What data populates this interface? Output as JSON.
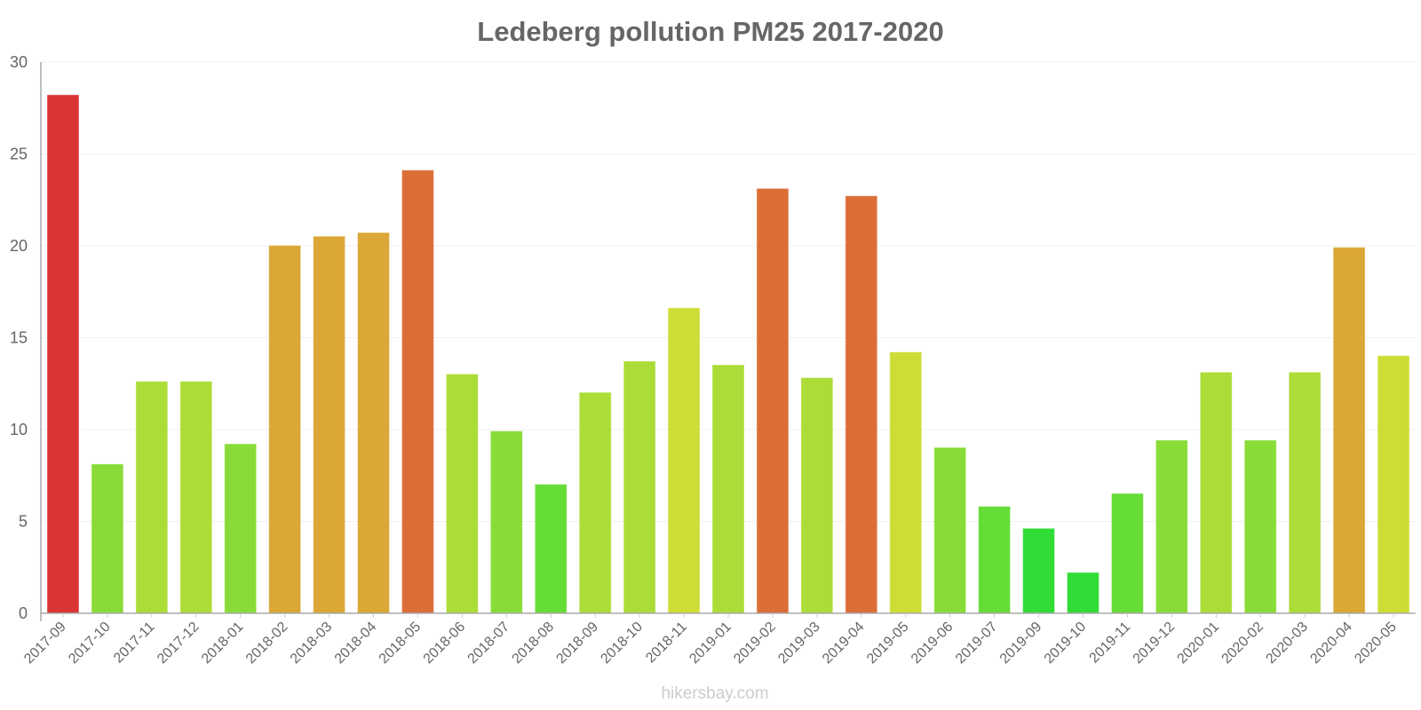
{
  "chart_data": {
    "type": "bar",
    "title": "Ledeberg pollution PM25 2017-2020",
    "xlabel": "",
    "ylabel": "",
    "ylim": [
      0,
      30
    ],
    "yticks": [
      0,
      5,
      10,
      15,
      20,
      25,
      30
    ],
    "grid": true,
    "categories": [
      "2017-09",
      "2017-10",
      "2017-11",
      "2017-12",
      "2018-01",
      "2018-02",
      "2018-03",
      "2018-04",
      "2018-05",
      "2018-06",
      "2018-07",
      "2018-08",
      "2018-09",
      "2018-10",
      "2018-11",
      "2019-01",
      "2019-02",
      "2019-03",
      "2019-04",
      "2019-05",
      "2019-06",
      "2019-07",
      "2019-09",
      "2019-10",
      "2019-11",
      "2019-12",
      "2020-01",
      "2020-02",
      "2020-03",
      "2020-04",
      "2020-05"
    ],
    "values": [
      28.2,
      8.1,
      12.6,
      12.6,
      9.2,
      20.0,
      20.5,
      20.7,
      24.1,
      13.0,
      9.9,
      7.0,
      12.0,
      13.7,
      16.6,
      13.5,
      23.1,
      12.8,
      22.7,
      14.2,
      9.0,
      5.8,
      4.6,
      2.2,
      6.5,
      9.4,
      13.1,
      9.4,
      13.1,
      19.9,
      14.0
    ],
    "colors": [
      "#d93535",
      "#89dc37",
      "#acdc37",
      "#acdc37",
      "#89dc37",
      "#dba737",
      "#dba737",
      "#dba737",
      "#db6e37",
      "#acdc37",
      "#89dc37",
      "#66dc37",
      "#acdc37",
      "#acdc37",
      "#cedc37",
      "#acdc37",
      "#db6e37",
      "#acdc37",
      "#db6e37",
      "#cedc37",
      "#89dc37",
      "#66dc37",
      "#32dc37",
      "#32dc37",
      "#66dc37",
      "#89dc37",
      "#acdc37",
      "#89dc37",
      "#acdc37",
      "#dba737",
      "#cedc37"
    ]
  },
  "credit": "hikersbay.com"
}
